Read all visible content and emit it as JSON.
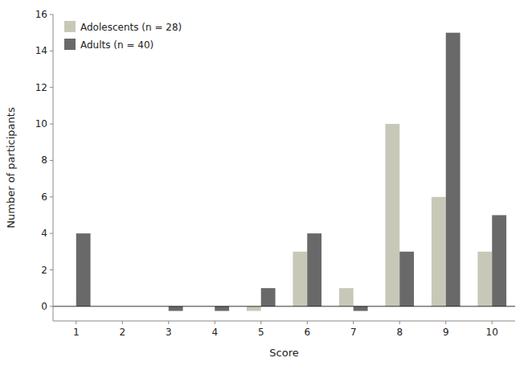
{
  "chart_data": {
    "type": "bar",
    "xlabel": "Score",
    "ylabel": "Number of participants",
    "categories": [
      "1",
      "2",
      "3",
      "4",
      "5",
      "6",
      "7",
      "8",
      "9",
      "10"
    ],
    "series": [
      {
        "name": "Adolescents (n = 28)",
        "color": "#c8c8b8",
        "values": [
          0,
          0,
          0,
          0,
          -0.25,
          3,
          1,
          10,
          6,
          3
        ]
      },
      {
        "name": "Adults (n = 40)",
        "color": "#696969",
        "values": [
          4,
          0,
          -0.25,
          -0.25,
          1,
          4,
          -0.25,
          3,
          15,
          5
        ]
      }
    ],
    "ylim": [
      -0.8,
      16
    ],
    "yticks": [
      0,
      2,
      4,
      6,
      8,
      10,
      12,
      14,
      16
    ],
    "grid": false,
    "legend": "upper-left"
  }
}
